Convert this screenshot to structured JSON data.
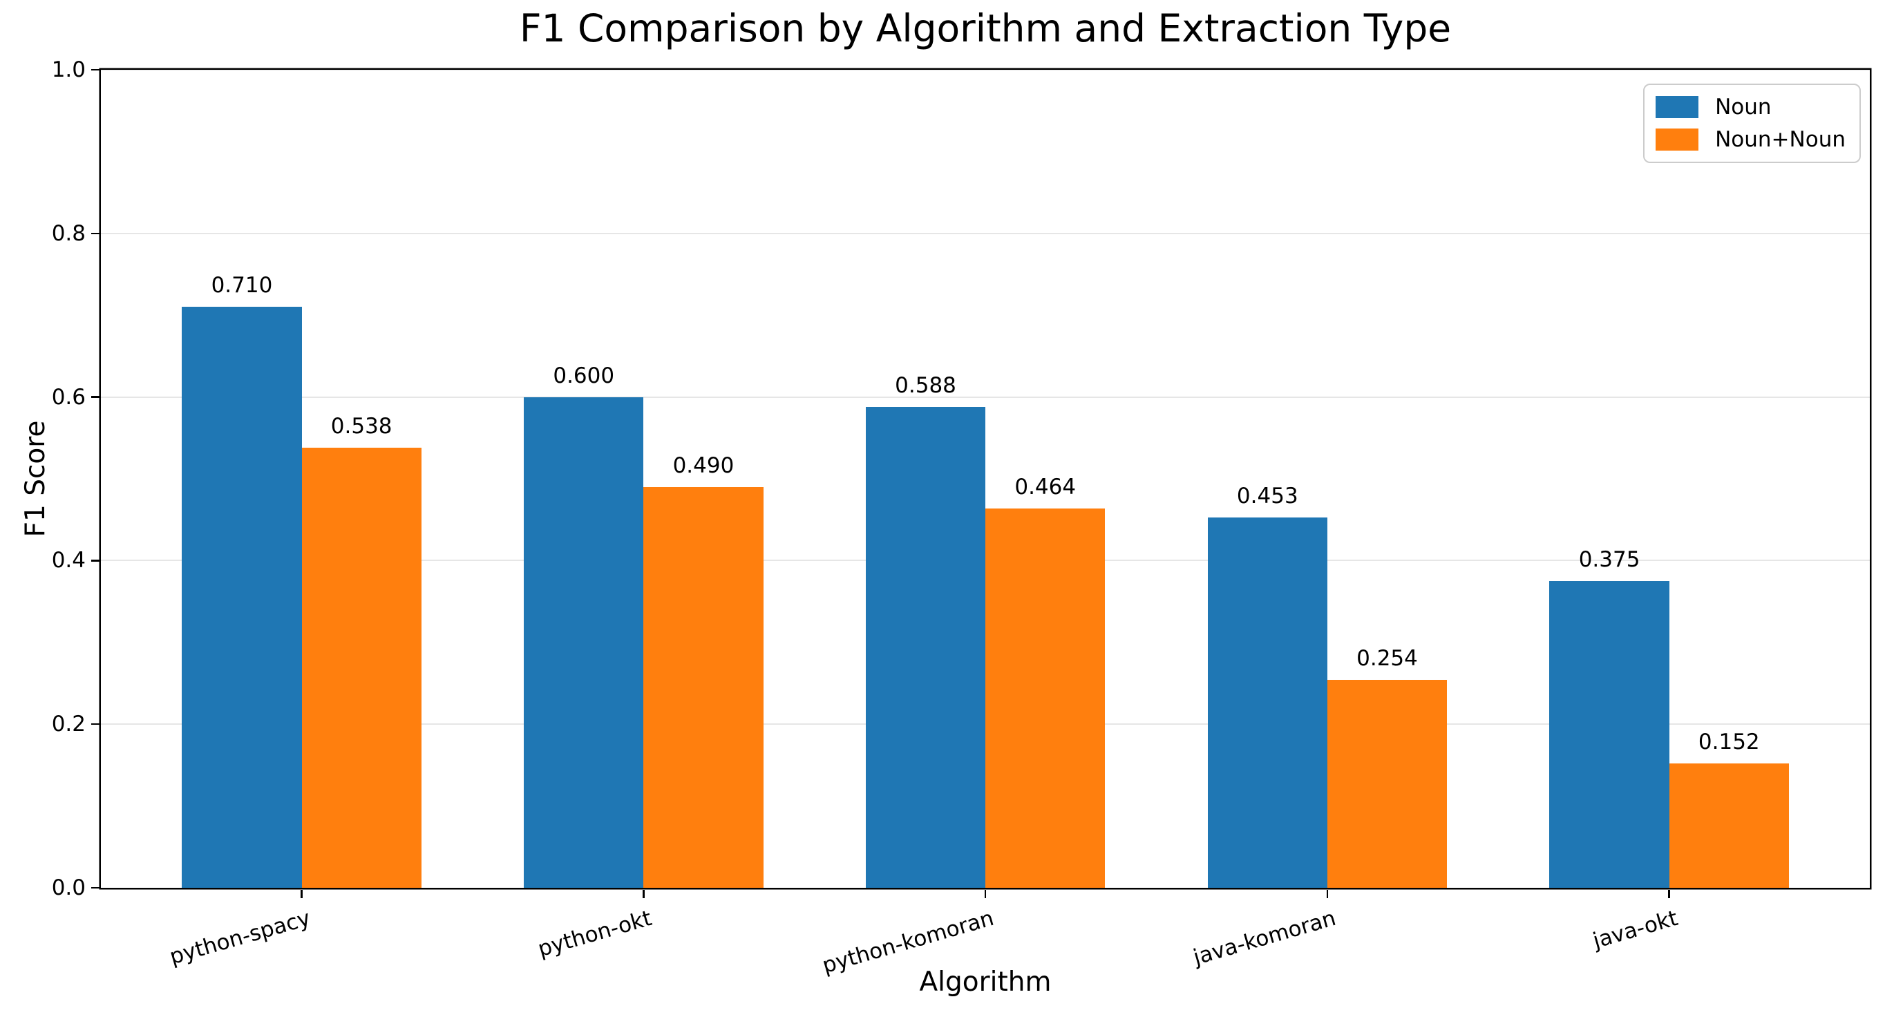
{
  "chart_data": {
    "type": "bar",
    "title": "F1 Comparison by Algorithm and Extraction Type",
    "xlabel": "Algorithm",
    "ylabel": "F1 Score",
    "categories": [
      "python-spacy",
      "python-okt",
      "python-komoran",
      "java-komoran",
      "java-okt"
    ],
    "series": [
      {
        "name": "Noun",
        "color": "#1f77b4",
        "values": [
          0.71,
          0.6,
          0.588,
          0.453,
          0.375
        ]
      },
      {
        "name": "Noun+Noun",
        "color": "#ff7f0e",
        "values": [
          0.538,
          0.49,
          0.464,
          0.254,
          0.152
        ]
      }
    ],
    "value_labels": [
      [
        "0.710",
        "0.600",
        "0.588",
        "0.453",
        "0.375"
      ],
      [
        "0.538",
        "0.490",
        "0.464",
        "0.254",
        "0.152"
      ]
    ],
    "ylim": [
      0.0,
      1.0
    ],
    "yticks": [
      "0.0",
      "0.2",
      "0.4",
      "0.6",
      "0.8",
      "1.0"
    ],
    "grid": true,
    "legend_position": "upper right",
    "colors": {
      "grid": "#e6e6e6",
      "spine": "#000000",
      "legend_border": "#cccccc",
      "background": "#ffffff"
    }
  }
}
